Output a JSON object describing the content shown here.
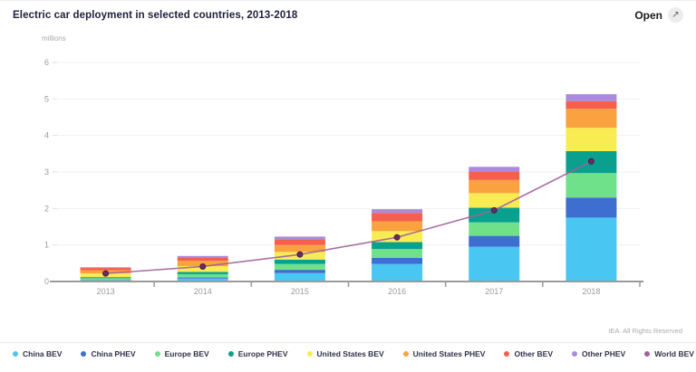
{
  "header": {
    "title": "Electric car deployment in selected countries, 2013-2018",
    "open_button": {
      "label": "Open",
      "icon": "expand-arrow"
    }
  },
  "footer": {
    "rights": "IEA. All Rights Reserved"
  },
  "chart_data": {
    "type": "bar",
    "stacked": true,
    "title": "Electric car deployment in selected countries, 2013-2018",
    "xlabel": "",
    "ylabel": "millions",
    "ylim": [
      0,
      6
    ],
    "yticks": [
      0,
      1,
      2,
      3,
      4,
      5,
      6
    ],
    "grid": true,
    "legend_position": "bottom",
    "categories": [
      "2013",
      "2014",
      "2015",
      "2016",
      "2017",
      "2018"
    ],
    "series": [
      {
        "name": "China BEV",
        "color": "#4ac6f3",
        "values": [
          0.03,
          0.08,
          0.23,
          0.48,
          0.95,
          1.75
        ]
      },
      {
        "name": "China PHEV",
        "color": "#3e6fd0",
        "values": [
          0.01,
          0.03,
          0.09,
          0.17,
          0.3,
          0.55
        ]
      },
      {
        "name": "Europe BEV",
        "color": "#6fe18b",
        "values": [
          0.05,
          0.09,
          0.16,
          0.24,
          0.37,
          0.67
        ]
      },
      {
        "name": "Europe PHEV",
        "color": "#0aa08e",
        "values": [
          0.03,
          0.06,
          0.12,
          0.19,
          0.4,
          0.6
        ]
      },
      {
        "name": "United States BEV",
        "color": "#f9ec53",
        "values": [
          0.1,
          0.16,
          0.21,
          0.3,
          0.4,
          0.64
        ]
      },
      {
        "name": "United States PHEV",
        "color": "#f9a23f",
        "values": [
          0.09,
          0.15,
          0.19,
          0.27,
          0.36,
          0.52
        ]
      },
      {
        "name": "Other BEV",
        "color": "#f4604d",
        "values": [
          0.06,
          0.09,
          0.16,
          0.23,
          0.22,
          0.21
        ]
      },
      {
        "name": "Other PHEV",
        "color": "#a98ade",
        "values": [
          0.02,
          0.04,
          0.07,
          0.1,
          0.14,
          0.19
        ]
      }
    ],
    "line_series": [
      {
        "name": "World BEV",
        "color": "#a2609c",
        "marker_color": "#6b2b63",
        "values": [
          0.22,
          0.41,
          0.74,
          1.21,
          1.95,
          3.29
        ]
      }
    ]
  }
}
